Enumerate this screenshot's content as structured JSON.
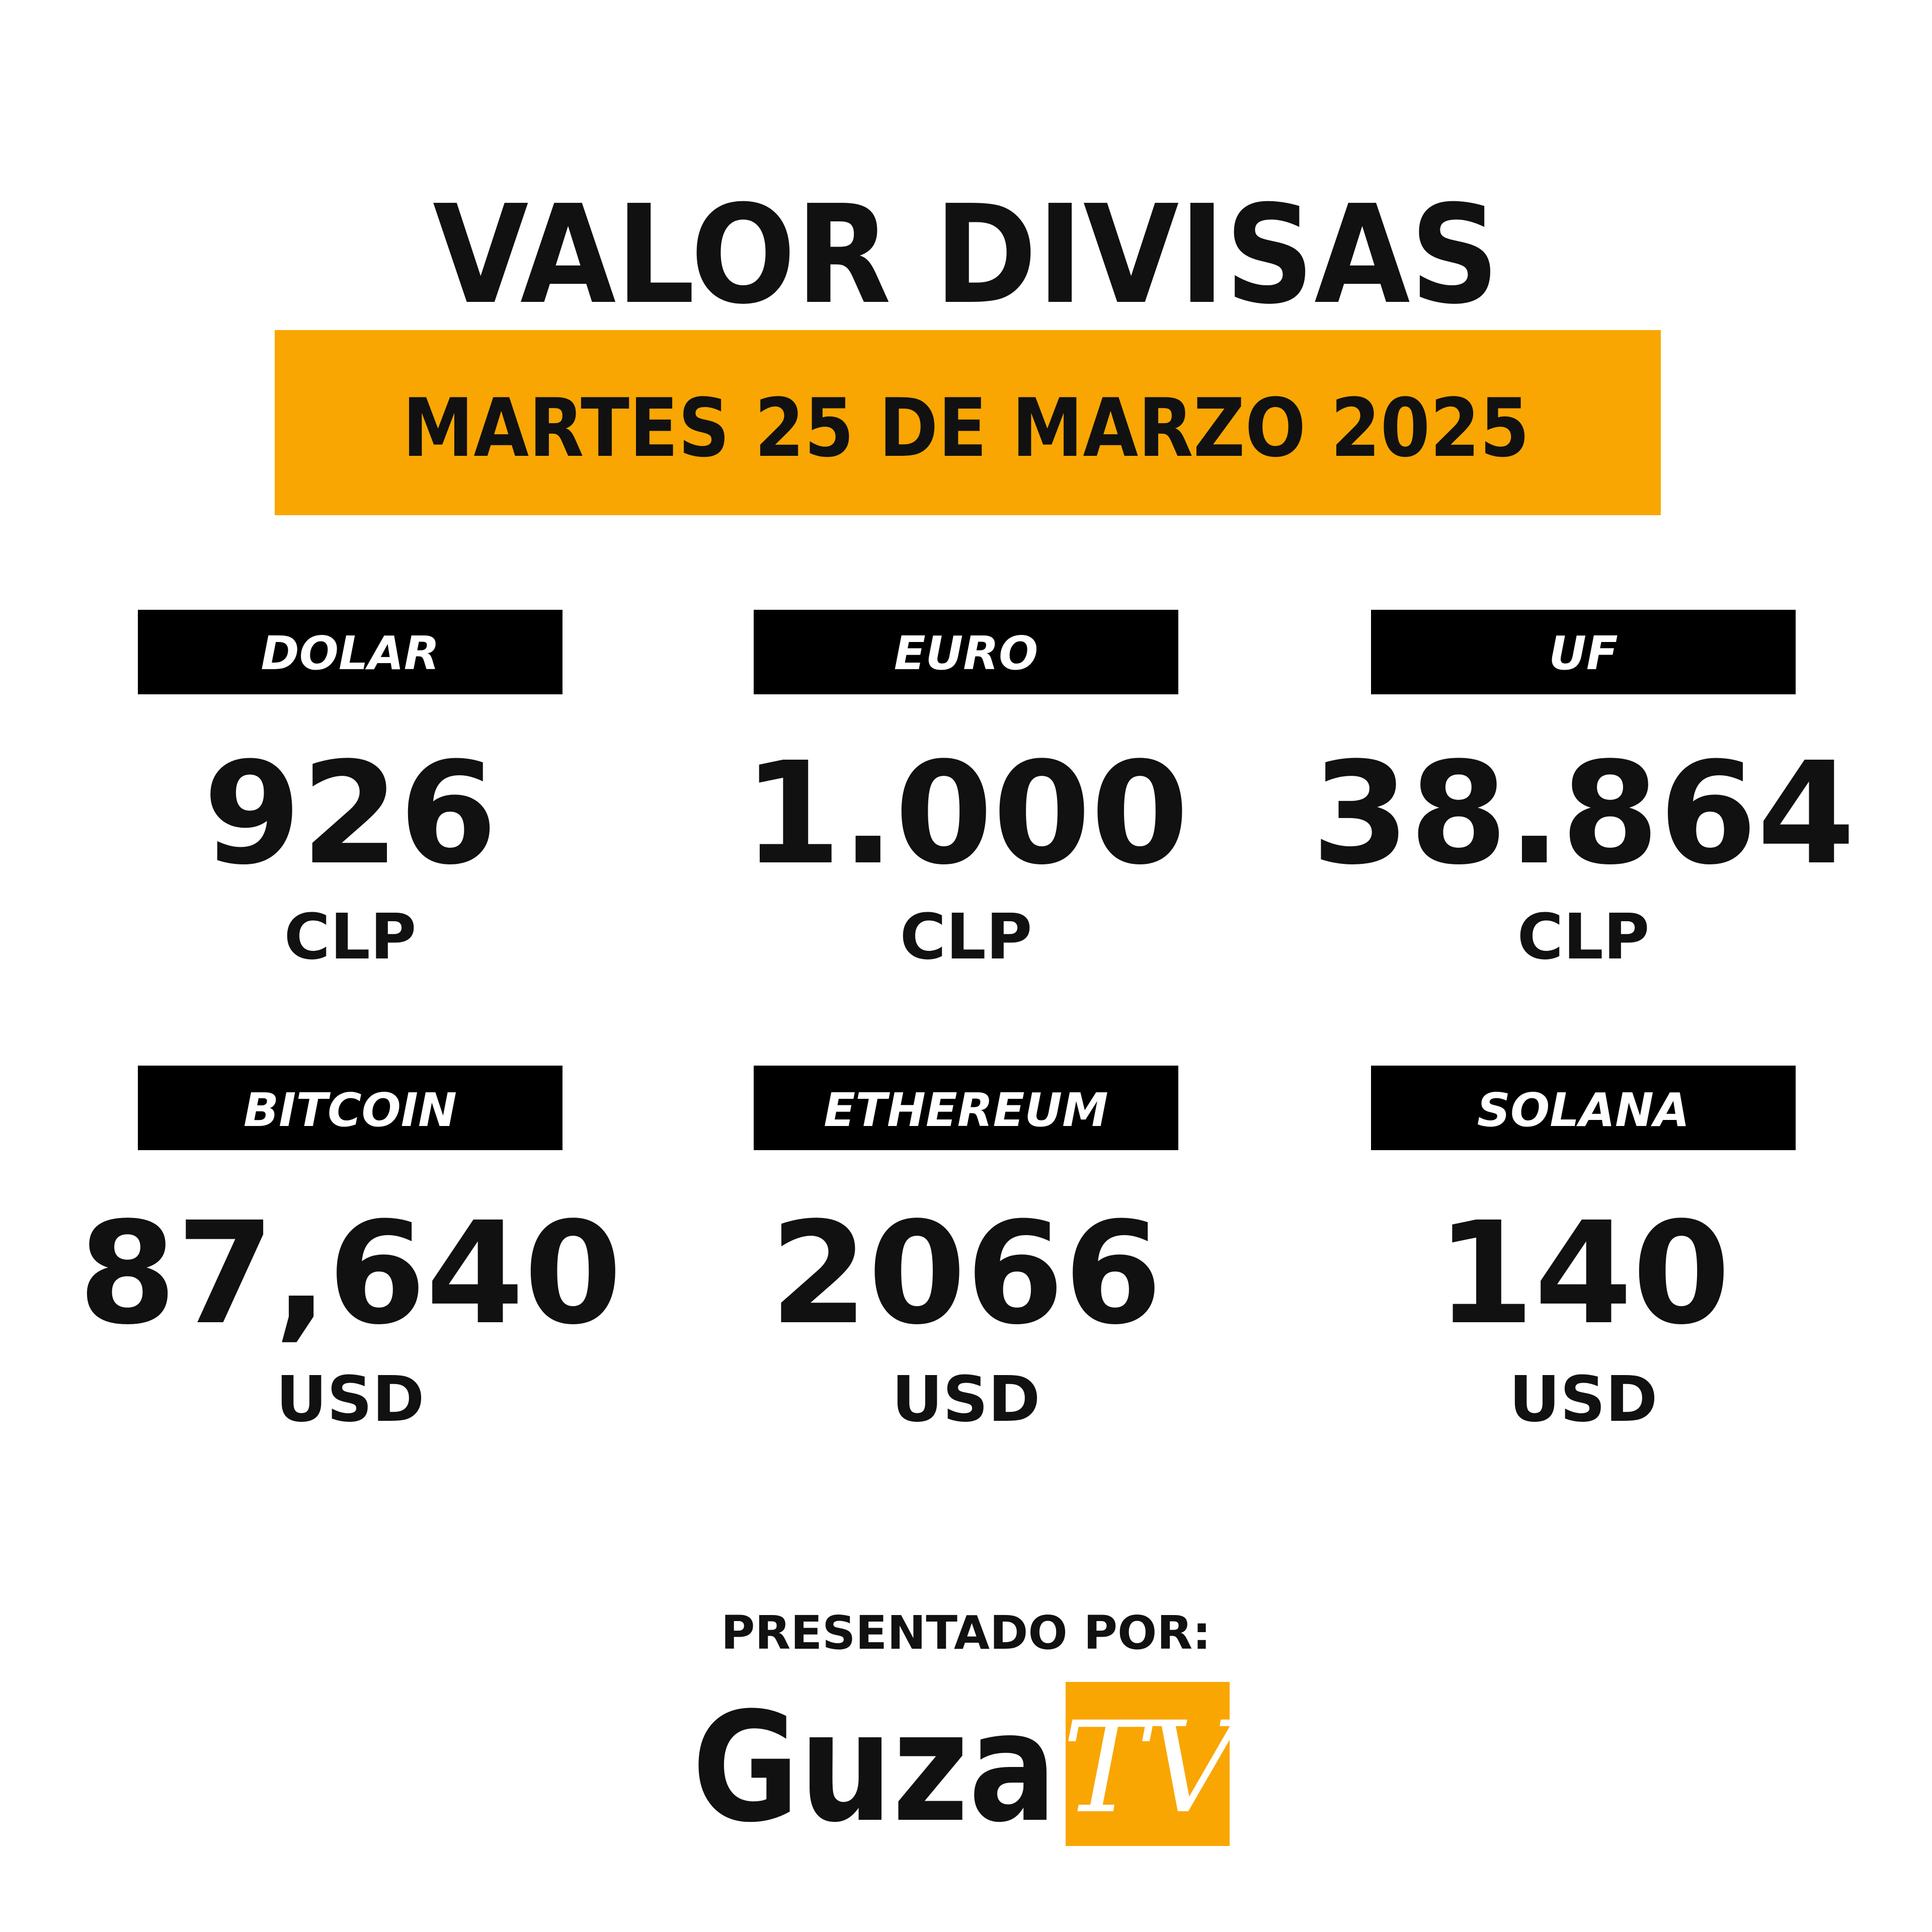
{
  "title": "VALOR DIVISAS",
  "date": "MARTES 25 DE MARZO 2025",
  "cards": [
    {
      "label": "DOLAR",
      "value": "926",
      "unit": "CLP"
    },
    {
      "label": "EURO",
      "value": "1.000",
      "unit": "CLP"
    },
    {
      "label": "UF",
      "value": "38.864",
      "unit": "CLP"
    },
    {
      "label": "BITCOIN",
      "value": "87,640",
      "unit": "USD"
    },
    {
      "label": "ETHEREUM",
      "value": "2066",
      "unit": "USD"
    },
    {
      "label": "SOLANA",
      "value": "140",
      "unit": "USD"
    }
  ],
  "footer": {
    "presented_by": "PRESENTADO POR:",
    "logo": {
      "name": "Guza",
      "badge": "TV"
    }
  }
}
